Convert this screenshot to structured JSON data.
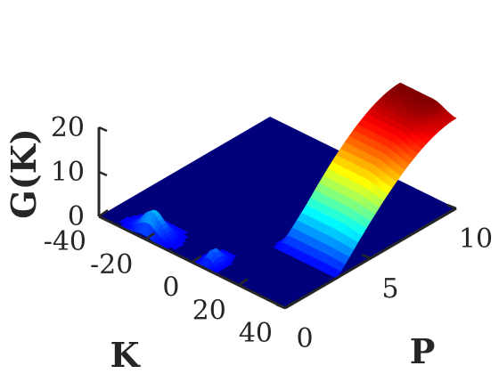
{
  "chart_data": {
    "type": "surface",
    "colormap": "jet",
    "xlabel": "K",
    "ylabel": "P",
    "zlabel": "G(K)",
    "x_ticks": [
      "-40",
      "-20",
      "0",
      "20",
      "40"
    ],
    "y_ticks": [
      "0",
      "5",
      "10"
    ],
    "z_ticks": [
      "0",
      "10",
      "20"
    ],
    "xlim": [
      -40,
      40
    ],
    "ylim": [
      0,
      10
    ],
    "zlim": [
      0,
      20
    ],
    "grid": false,
    "features": [
      {
        "description_k": [
          -30,
          -12
        ],
        "p": 0.6,
        "peak_g": 5
      },
      {
        "description_k": [
          2,
          8
        ],
        "p": 0.6,
        "peak_g": 3
      },
      {
        "description_k": [
          12,
          40
        ],
        "p_range": [
          3,
          10
        ],
        "peak_g": 22
      }
    ],
    "surface_model": {
      "k_range": [
        -40,
        40
      ],
      "p_range": [
        0,
        10
      ],
      "ridge_start_p": 3,
      "ridge_max": 22
    }
  }
}
